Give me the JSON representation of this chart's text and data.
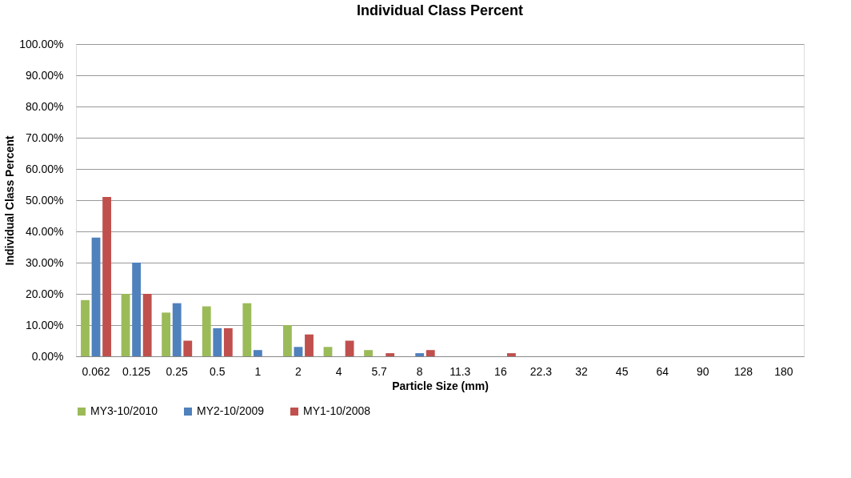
{
  "chart_data": {
    "type": "bar",
    "title": "Individual Class Percent",
    "xlabel": "Particle Size (mm)",
    "ylabel": "Individual Class Percent",
    "categories": [
      "0.062",
      "0.125",
      "0.25",
      "0.5",
      "1",
      "2",
      "4",
      "5.7",
      "8",
      "11.3",
      "16",
      "22.3",
      "32",
      "45",
      "64",
      "90",
      "128",
      "180"
    ],
    "series": [
      {
        "name": "MY3-10/2010",
        "color": "#9bbb59",
        "values": [
          18,
          20,
          14,
          16,
          17,
          10,
          3,
          2,
          0,
          0,
          0,
          0,
          0,
          0,
          0,
          0,
          0,
          0
        ]
      },
      {
        "name": "MY2-10/2009",
        "color": "#4f81bd",
        "values": [
          38,
          30,
          17,
          9,
          2,
          3,
          0,
          0,
          1,
          0,
          0,
          0,
          0,
          0,
          0,
          0,
          0,
          0
        ]
      },
      {
        "name": "MY1-10/2008",
        "color": "#c0504d",
        "values": [
          51,
          20,
          5,
          9,
          0,
          7,
          5,
          1,
          2,
          0,
          1,
          0,
          0,
          0,
          0,
          0,
          0,
          0
        ]
      }
    ],
    "ylim": [
      0,
      100
    ],
    "yticks": [
      {
        "value": 0,
        "label": "0.00%"
      },
      {
        "value": 10,
        "label": "10.00%"
      },
      {
        "value": 20,
        "label": "20.00%"
      },
      {
        "value": 30,
        "label": "30.00%"
      },
      {
        "value": 40,
        "label": "40.00%"
      },
      {
        "value": 50,
        "label": "50.00%"
      },
      {
        "value": 60,
        "label": "60.00%"
      },
      {
        "value": 70,
        "label": "70.00%"
      },
      {
        "value": 80,
        "label": "80.00%"
      },
      {
        "value": 90,
        "label": "90.00%"
      },
      {
        "value": 100,
        "label": "100.00%"
      }
    ],
    "grid": "y",
    "legend": "bottom"
  }
}
